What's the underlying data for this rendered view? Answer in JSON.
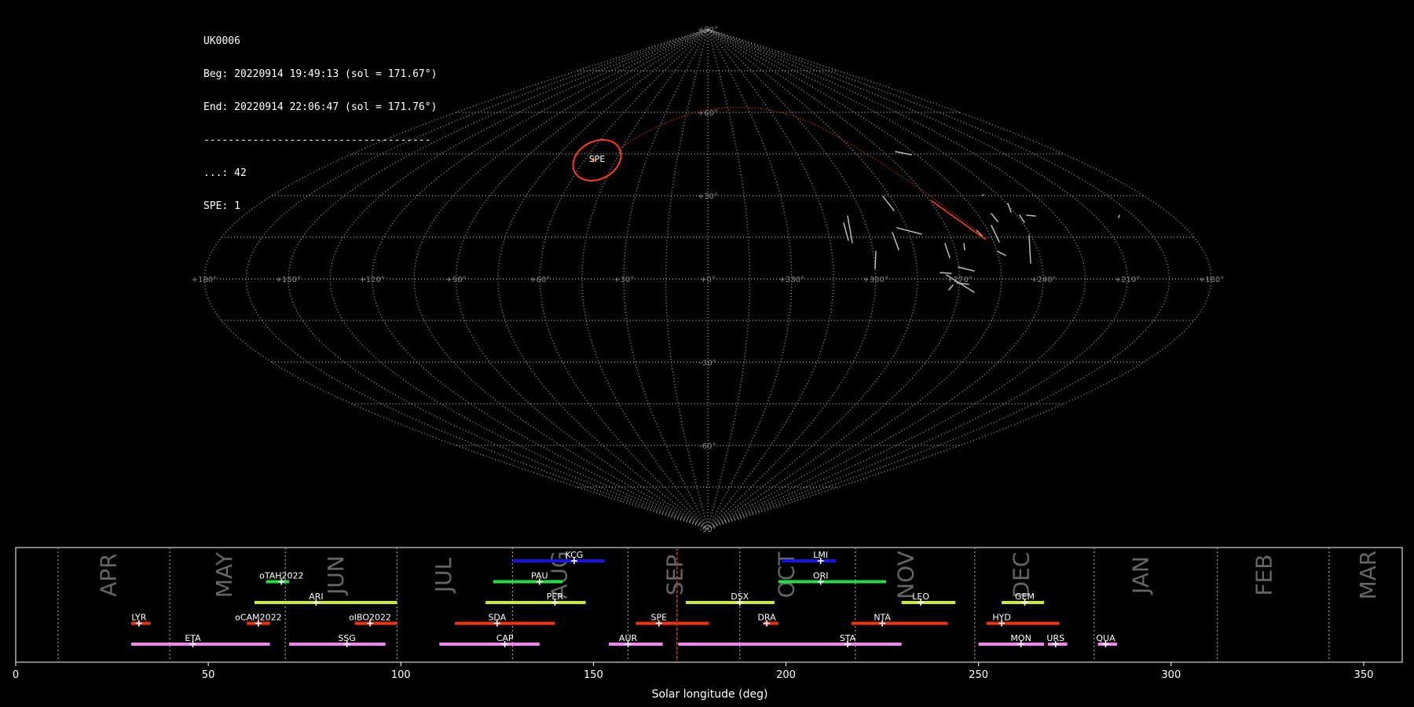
{
  "info": {
    "station": "UK0006",
    "beg": "Beg: 20220914 19:49:13 (sol = 171.67°)",
    "end": "End: 20220914 22:06:47 (sol = 171.76°)",
    "separator": "-------------------------------------",
    "count_sporadic": "...: 42",
    "count_spe": "SPE: 1"
  },
  "sky_map": {
    "projection": "sinusoidal",
    "lon_labels": [
      "+180°",
      "+150°",
      "+120°",
      "+90°",
      "+60°",
      "+30°",
      "+0°",
      "+330°",
      "+300°",
      "+270°",
      "+240°",
      "+210°",
      "+180°"
    ],
    "lat_labels": [
      "+90°",
      "+60°",
      "+30°",
      "-30°",
      "-60°",
      "-90°"
    ],
    "radiant_label": "SPE",
    "colors": {
      "grid": "#9a9a9a",
      "spe": "#ff3a1a",
      "sporadic": "#bbbbbb"
    }
  },
  "chart_data": {
    "type": "timeline",
    "xlabel": "Solar longitude (deg)",
    "xlim": [
      0,
      360
    ],
    "x_ticks": [
      0,
      50,
      100,
      150,
      200,
      250,
      300,
      350
    ],
    "current_sol": 171.7,
    "months": [
      {
        "label": "APR",
        "x": 24
      },
      {
        "label": "MAY",
        "x": 54
      },
      {
        "label": "JUN",
        "x": 83
      },
      {
        "label": "JUL",
        "x": 111
      },
      {
        "label": "AUG",
        "x": 141
      },
      {
        "label": "SEP",
        "x": 171
      },
      {
        "label": "OCT",
        "x": 200
      },
      {
        "label": "NOV",
        "x": 231
      },
      {
        "label": "DEC",
        "x": 261
      },
      {
        "label": "JAN",
        "x": 292
      },
      {
        "label": "FEB",
        "x": 324
      },
      {
        "label": "MAR",
        "x": 351
      }
    ],
    "month_boundaries": [
      11,
      40,
      70,
      99,
      129,
      159,
      188,
      218,
      249,
      280,
      312,
      341
    ],
    "showers": [
      {
        "name": "KCG",
        "start": 129,
        "end": 153,
        "peak": 145,
        "row": 5,
        "color": "#1515dd"
      },
      {
        "name": "LMI",
        "start": 199,
        "end": 213,
        "peak": 209,
        "row": 5,
        "color": "#1515dd"
      },
      {
        "name": "oTAH2022",
        "start": 65,
        "end": 71,
        "peak": 69,
        "row": 4,
        "color": "#22dd44"
      },
      {
        "name": "PAU",
        "start": 124,
        "end": 142,
        "peak": 136,
        "row": 4,
        "color": "#22dd44"
      },
      {
        "name": "ORI",
        "start": 198,
        "end": 226,
        "peak": 209,
        "row": 4,
        "color": "#22dd44"
      },
      {
        "name": "ARI",
        "start": 62,
        "end": 99,
        "peak": 78,
        "row": 3,
        "color": "#ccee22"
      },
      {
        "name": "PER",
        "start": 122,
        "end": 148,
        "peak": 140,
        "row": 3,
        "color": "#ccee22"
      },
      {
        "name": "DSX",
        "start": 174,
        "end": 197,
        "peak": 188,
        "row": 3,
        "color": "#ccee22"
      },
      {
        "name": "LEO",
        "start": 230,
        "end": 244,
        "peak": 235,
        "row": 3,
        "color": "#ccee22"
      },
      {
        "name": "GEM",
        "start": 256,
        "end": 267,
        "peak": 262,
        "row": 3,
        "color": "#ccee22"
      },
      {
        "name": "LYR",
        "start": 30,
        "end": 35,
        "peak": 32,
        "row": 2,
        "color": "#ee3311"
      },
      {
        "name": "oCAM2022",
        "start": 60,
        "end": 66,
        "peak": 63,
        "row": 2,
        "color": "#ee3311"
      },
      {
        "name": "oIBO2022",
        "start": 88,
        "end": 99,
        "peak": 92,
        "row": 2,
        "color": "#ee3311"
      },
      {
        "name": "SDA",
        "start": 114,
        "end": 140,
        "peak": 125,
        "row": 2,
        "color": "#ee3311"
      },
      {
        "name": "SPE",
        "start": 161,
        "end": 180,
        "peak": 167,
        "row": 2,
        "color": "#ee3311"
      },
      {
        "name": "DRA",
        "start": 194,
        "end": 198,
        "peak": 195,
        "row": 2,
        "color": "#ee3311"
      },
      {
        "name": "NTA",
        "start": 217,
        "end": 242,
        "peak": 225,
        "row": 2,
        "color": "#ee3311"
      },
      {
        "name": "HYD",
        "start": 252,
        "end": 271,
        "peak": 256,
        "row": 2,
        "color": "#ee3311"
      },
      {
        "name": "ETA",
        "start": 30,
        "end": 66,
        "peak": 46,
        "row": 1,
        "color": "#ee88ee"
      },
      {
        "name": "SSG",
        "start": 71,
        "end": 96,
        "peak": 86,
        "row": 1,
        "color": "#ee88ee"
      },
      {
        "name": "CAP",
        "start": 110,
        "end": 136,
        "peak": 127,
        "row": 1,
        "color": "#ee88ee"
      },
      {
        "name": "AUR",
        "start": 154,
        "end": 168,
        "peak": 159,
        "row": 1,
        "color": "#ee88ee"
      },
      {
        "name": "STA",
        "start": 172,
        "end": 230,
        "peak": 216,
        "row": 1,
        "color": "#ee88ee"
      },
      {
        "name": "MON",
        "start": 250,
        "end": 267,
        "peak": 261,
        "row": 1,
        "color": "#ee88ee"
      },
      {
        "name": "URS",
        "start": 268,
        "end": 273,
        "peak": 270,
        "row": 1,
        "color": "#ee88ee"
      },
      {
        "name": "QUA",
        "start": 281,
        "end": 286,
        "peak": 283,
        "row": 1,
        "color": "#ee88ee"
      }
    ]
  }
}
